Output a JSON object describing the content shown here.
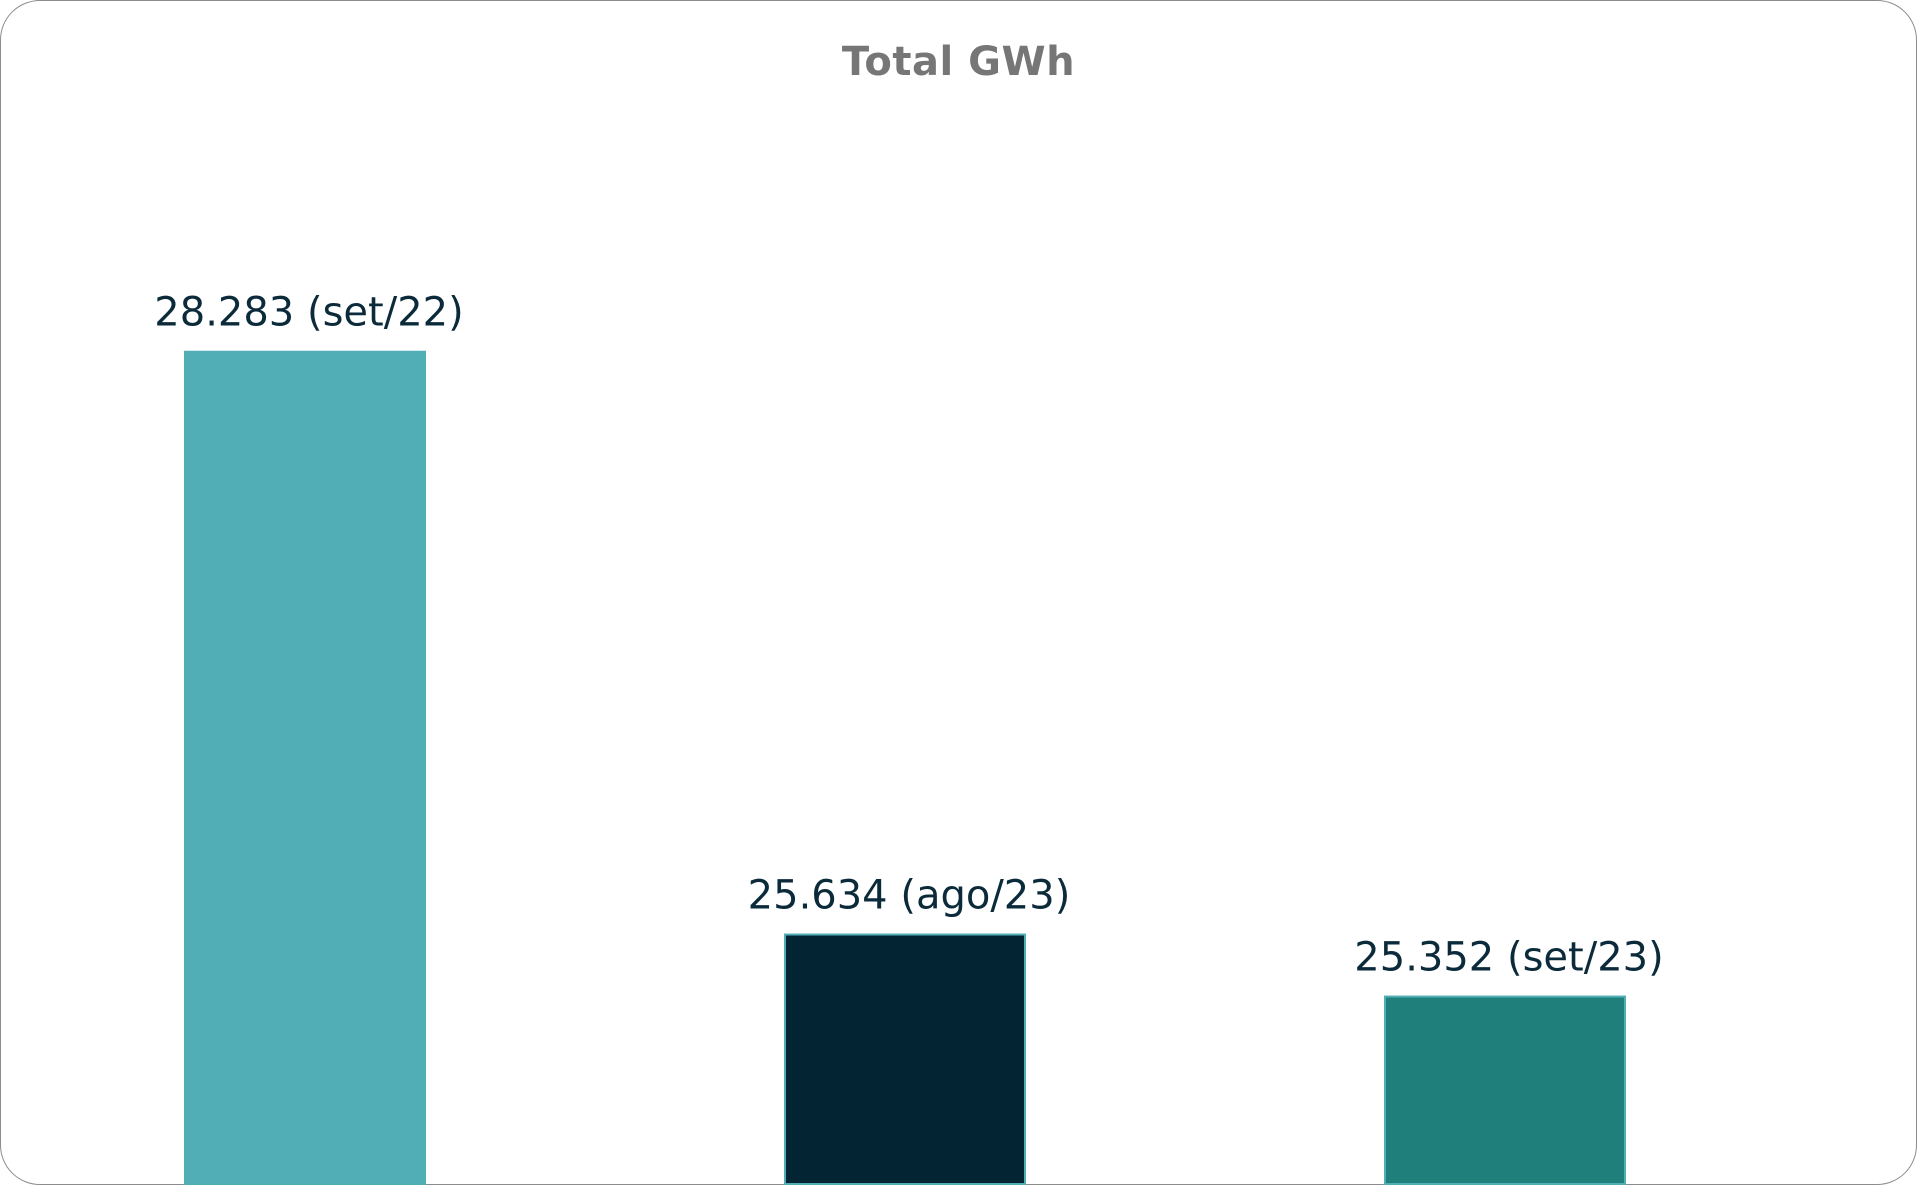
{
  "chart_data": {
    "type": "bar",
    "title": "Total GWh",
    "xlabel": "",
    "ylabel": "",
    "ylim": [
      24500,
      29200
    ],
    "grid": false,
    "legend": "none",
    "categories": [
      "set/22",
      "ago/23",
      "set/23"
    ],
    "values": [
      28283,
      25634,
      25352
    ],
    "data_labels": [
      "28.283 (set/22)",
      "25.634 (ago/23)",
      "25.352 (set/23)"
    ],
    "colors": [
      "#52aeb6",
      "#022433",
      "#1f7f7a"
    ],
    "bar_outline": "#52aeb6"
  }
}
